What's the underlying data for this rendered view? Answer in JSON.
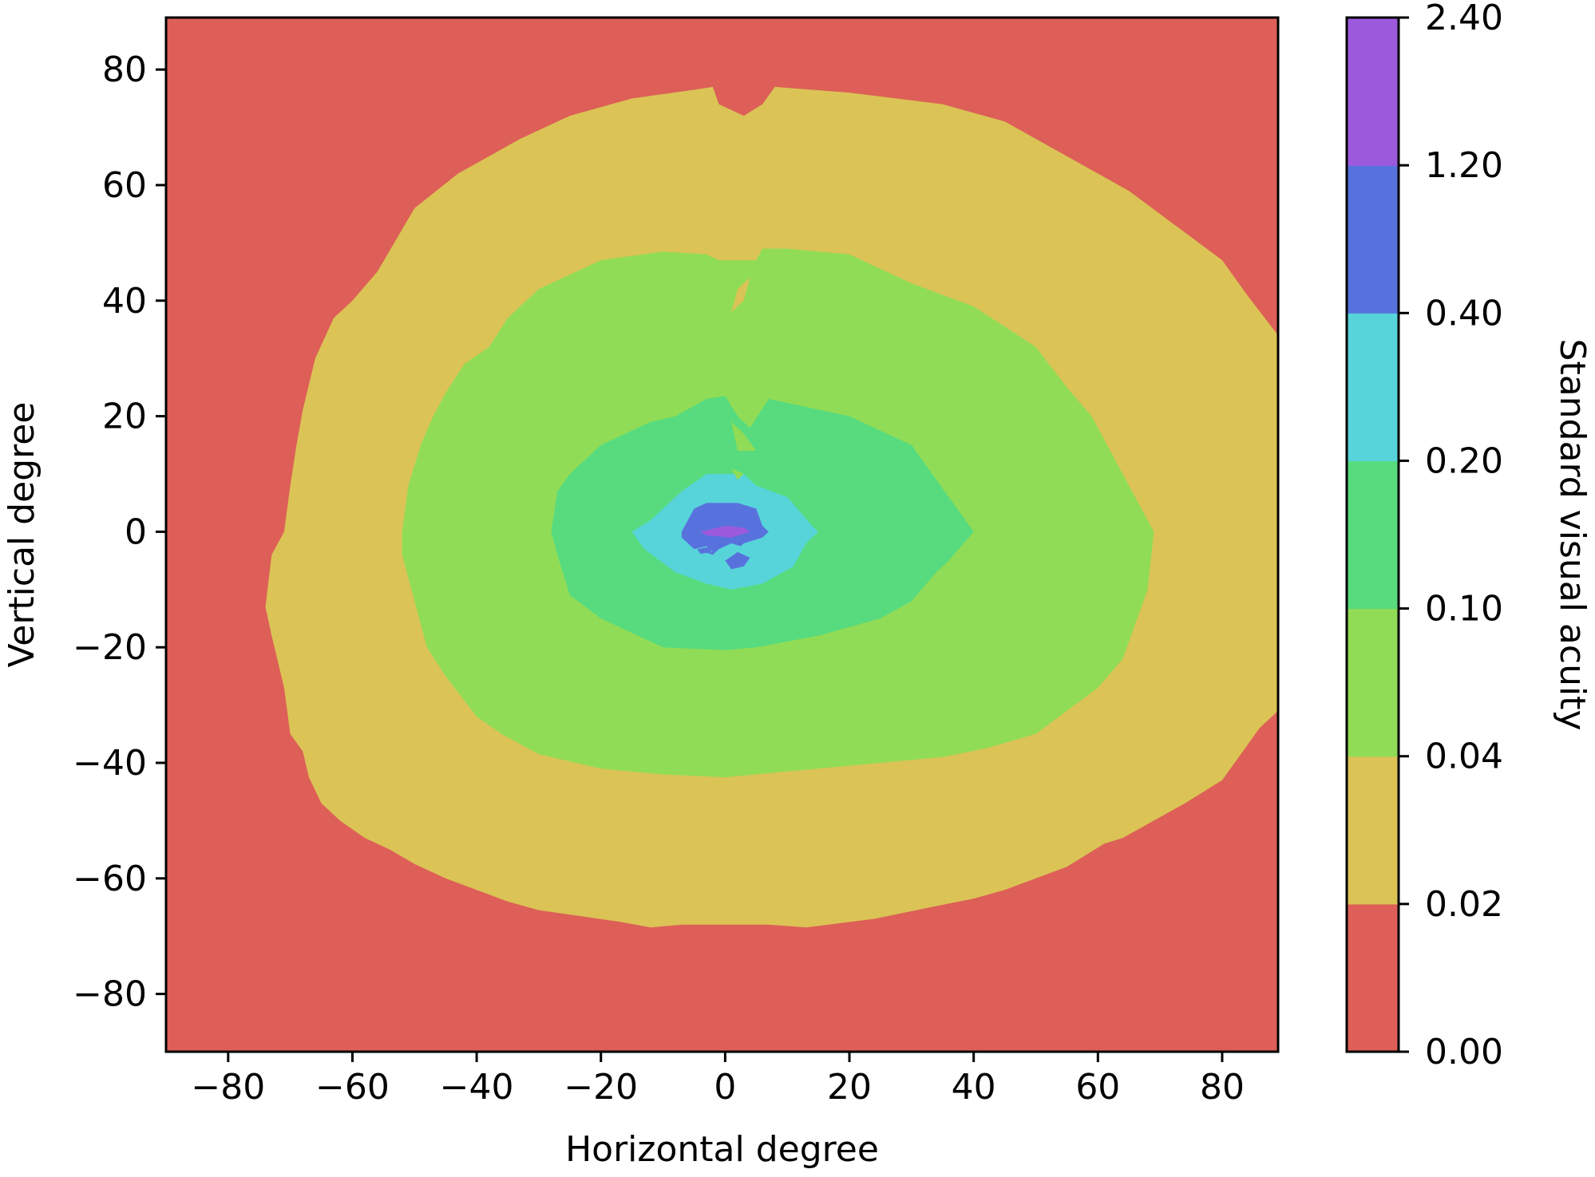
{
  "chart_data": {
    "type": "contour",
    "xlabel": "Horizontal degree",
    "ylabel": "Vertical degree",
    "xlim": [
      -90,
      89
    ],
    "ylim": [
      -90,
      89
    ],
    "xticks": [
      -80,
      -60,
      -40,
      -20,
      0,
      20,
      40,
      60,
      80
    ],
    "yticks": [
      -80,
      -60,
      -40,
      -20,
      0,
      20,
      40,
      60,
      80
    ],
    "xtick_labels": [
      "−80",
      "−60",
      "−40",
      "−20",
      "0",
      "20",
      "40",
      "60",
      "80"
    ],
    "ytick_labels": [
      "−80",
      "−60",
      "−40",
      "−20",
      "0",
      "20",
      "40",
      "60",
      "80"
    ],
    "grid": false,
    "colorbar": {
      "label": "Standard visual acuity",
      "boundaries": [
        0.0,
        0.02,
        0.04,
        0.1,
        0.2,
        0.4,
        1.2,
        2.4
      ],
      "tick_labels": [
        "0.00",
        "0.02",
        "0.04",
        "0.10",
        "0.20",
        "0.40",
        "1.20",
        "2.40"
      ],
      "colors": [
        "#dd5f57",
        "#dbc356",
        "#91dc56",
        "#57db7e",
        "#57d4d9",
        "#5872dd",
        "#9d59dc"
      ]
    },
    "levels": [
      {
        "range": [
          0.0,
          0.02
        ],
        "color": "#dd5f57",
        "region": "background"
      },
      {
        "range": [
          0.02,
          0.04
        ],
        "color": "#dbc356",
        "polygon": [
          [
            -2,
            77
          ],
          [
            -1,
            74
          ],
          [
            3,
            72
          ],
          [
            6,
            74
          ],
          [
            8,
            77
          ],
          [
            20,
            76
          ],
          [
            35,
            74
          ],
          [
            45,
            71
          ],
          [
            55,
            65
          ],
          [
            65,
            59
          ],
          [
            80,
            47
          ],
          [
            84,
            41
          ],
          [
            89,
            34
          ],
          [
            89,
            -31
          ],
          [
            86,
            -34
          ],
          [
            80,
            -43
          ],
          [
            74,
            -47
          ],
          [
            69,
            -50
          ],
          [
            64,
            -53
          ],
          [
            61,
            -54
          ],
          [
            55,
            -58
          ],
          [
            50,
            -60
          ],
          [
            45,
            -62
          ],
          [
            40,
            -63.5
          ],
          [
            33,
            -65
          ],
          [
            24,
            -67
          ],
          [
            13,
            -68.5
          ],
          [
            7,
            -68
          ],
          [
            0,
            -68
          ],
          [
            -7,
            -68
          ],
          [
            -12,
            -68.5
          ],
          [
            -17,
            -67.5
          ],
          [
            -30,
            -65.5
          ],
          [
            -35,
            -64
          ],
          [
            -40,
            -62
          ],
          [
            -45,
            -60
          ],
          [
            -50,
            -57.5
          ],
          [
            -54,
            -55
          ],
          [
            -58,
            -53
          ],
          [
            -62,
            -50
          ],
          [
            -65,
            -47
          ],
          [
            -67,
            -42.5
          ],
          [
            -68,
            -38
          ],
          [
            -70,
            -35
          ],
          [
            -71,
            -27
          ],
          [
            -73,
            -18
          ],
          [
            -74,
            -13
          ],
          [
            -73,
            -4
          ],
          [
            -71,
            0
          ],
          [
            -70,
            8
          ],
          [
            -69,
            15
          ],
          [
            -68,
            21
          ],
          [
            -66,
            30
          ],
          [
            -63,
            37
          ],
          [
            -60,
            40
          ],
          [
            -56,
            45
          ],
          [
            -50,
            56
          ],
          [
            -43,
            62
          ],
          [
            -33,
            68
          ],
          [
            -25,
            72
          ],
          [
            -15,
            75
          ],
          [
            -5,
            76.5
          ]
        ]
      },
      {
        "range": [
          0.04,
          0.1
        ],
        "color": "#91dc56",
        "polygon": [
          [
            -3,
            48
          ],
          [
            -1,
            47
          ],
          [
            3,
            47
          ],
          [
            5,
            47
          ],
          [
            6,
            49
          ],
          [
            10,
            49
          ],
          [
            20,
            48
          ],
          [
            30,
            43
          ],
          [
            40,
            39
          ],
          [
            50,
            32
          ],
          [
            55,
            25
          ],
          [
            59,
            20
          ],
          [
            64,
            10
          ],
          [
            69,
            0
          ],
          [
            68,
            -10
          ],
          [
            64,
            -22
          ],
          [
            60,
            -27
          ],
          [
            55,
            -31
          ],
          [
            50,
            -35
          ],
          [
            42,
            -37.5
          ],
          [
            35,
            -39
          ],
          [
            25,
            -40
          ],
          [
            10,
            -41.5
          ],
          [
            0,
            -42.5
          ],
          [
            -10,
            -42
          ],
          [
            -20,
            -41
          ],
          [
            -30,
            -38.5
          ],
          [
            -36,
            -35
          ],
          [
            -40,
            -32
          ],
          [
            -45,
            -25
          ],
          [
            -48,
            -20
          ],
          [
            -50,
            -12
          ],
          [
            -52,
            -4
          ],
          [
            -52,
            0
          ],
          [
            -51,
            8
          ],
          [
            -49,
            15
          ],
          [
            -47,
            20
          ],
          [
            -45,
            24
          ],
          [
            -42,
            29
          ],
          [
            -38,
            32
          ],
          [
            -35,
            37
          ],
          [
            -30,
            42
          ],
          [
            -20,
            47
          ],
          [
            -10,
            48.5
          ]
        ]
      },
      {
        "range": [
          0.1,
          0.2
        ],
        "color": "#57db7e",
        "polygon": [
          [
            -3,
            23
          ],
          [
            0,
            23.5
          ],
          [
            2,
            20
          ],
          [
            4,
            18
          ],
          [
            7,
            23
          ],
          [
            20,
            20
          ],
          [
            30,
            15
          ],
          [
            36,
            6
          ],
          [
            40,
            0
          ],
          [
            36,
            -5
          ],
          [
            34,
            -7
          ],
          [
            30,
            -12
          ],
          [
            25,
            -15
          ],
          [
            15,
            -18
          ],
          [
            5,
            -20
          ],
          [
            0,
            -20.5
          ],
          [
            -10,
            -20
          ],
          [
            -20,
            -15
          ],
          [
            -25,
            -11
          ],
          [
            -27,
            -4
          ],
          [
            -28,
            0
          ],
          [
            -27,
            7
          ],
          [
            -25,
            10
          ],
          [
            -20,
            15
          ],
          [
            -12,
            19
          ],
          [
            -8,
            20
          ]
        ]
      },
      {
        "range": [
          0.2,
          0.4
        ],
        "color": "#57d4d9",
        "polygon": [
          [
            -7,
            7
          ],
          [
            -3,
            10
          ],
          [
            3,
            10
          ],
          [
            5,
            8
          ],
          [
            10,
            6
          ],
          [
            14,
            1
          ],
          [
            15,
            0
          ],
          [
            13,
            -2
          ],
          [
            11,
            -6
          ],
          [
            6,
            -9
          ],
          [
            1,
            -10
          ],
          [
            -3,
            -9
          ],
          [
            -8,
            -7
          ],
          [
            -13,
            -3
          ],
          [
            -15,
            0
          ],
          [
            -12,
            2
          ]
        ]
      },
      {
        "range": [
          0.4,
          1.2
        ],
        "color": "#5872dd",
        "polygon": [
          [
            -5,
            4
          ],
          [
            -3,
            5
          ],
          [
            2,
            5
          ],
          [
            5,
            4
          ],
          [
            6,
            1
          ],
          [
            7,
            0
          ],
          [
            6,
            -1
          ],
          [
            3,
            -2
          ],
          [
            1,
            -4
          ],
          [
            -2,
            -4
          ],
          [
            -5,
            -3
          ],
          [
            -7,
            -1
          ],
          [
            -7,
            0
          ],
          [
            -6,
            2
          ]
        ]
      },
      {
        "range": [
          1.2,
          2.4
        ],
        "color": "#9d59dc",
        "polygon": [
          [
            -4,
            0
          ],
          [
            0,
            1
          ],
          [
            3,
            0.7
          ],
          [
            4,
            0
          ],
          [
            1,
            -1
          ],
          [
            -3,
            -0.6
          ]
        ]
      }
    ],
    "islands": [
      {
        "color": "#dbc356",
        "polygon": [
          [
            2,
            42
          ],
          [
            4,
            44
          ],
          [
            3,
            40
          ],
          [
            1,
            38
          ]
        ]
      },
      {
        "color": "#91dc56",
        "polygon": [
          [
            1,
            19
          ],
          [
            3,
            17
          ],
          [
            5,
            14
          ],
          [
            2,
            14
          ]
        ]
      },
      {
        "color": "#91dc56",
        "polygon": [
          [
            1,
            11
          ],
          [
            3,
            10
          ],
          [
            2,
            9
          ]
        ]
      },
      {
        "color": "#57d4d9",
        "polygon": [
          [
            -2,
            -4
          ],
          [
            0,
            -5
          ],
          [
            2,
            -5
          ],
          [
            4,
            -4
          ],
          [
            4,
            -3
          ],
          [
            1,
            -2
          ],
          [
            -1,
            -3
          ]
        ]
      },
      {
        "color": "#57d4d9",
        "polygon": [
          [
            -5,
            -3
          ],
          [
            -3,
            -2.5
          ],
          [
            -2,
            -3.5
          ],
          [
            -4,
            -4
          ]
        ]
      },
      {
        "color": "#5872dd",
        "polygon": [
          [
            0,
            -5
          ],
          [
            1,
            -6.5
          ],
          [
            3,
            -6
          ],
          [
            4,
            -4.5
          ],
          [
            2,
            -3.5
          ]
        ]
      },
      {
        "color": "#5872dd",
        "polygon": [
          [
            -4.5,
            -3
          ],
          [
            -2.5,
            -2.6
          ],
          [
            -2.2,
            -3.6
          ],
          [
            -4,
            -3.8
          ]
        ]
      }
    ]
  }
}
